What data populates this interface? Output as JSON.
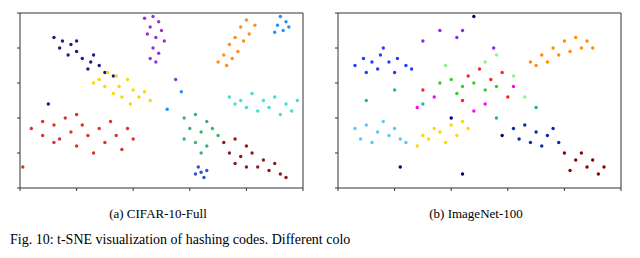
{
  "chart_data": [
    {
      "type": "scatter",
      "title": "(a) CIFAR-10-Full",
      "xlim": [
        0,
        100
      ],
      "ylim": [
        0,
        100
      ],
      "xticks": [
        0,
        20,
        40,
        60,
        80,
        100
      ],
      "yticks": [
        0,
        20,
        40,
        60,
        80,
        100
      ],
      "tick_labels": false,
      "series": [
        {
          "color": "#1c1c7a",
          "x": [
            12,
            15,
            14,
            18,
            20,
            17,
            22,
            25,
            24,
            28,
            30,
            33,
            20,
            26,
            10
          ],
          "y": [
            86,
            84,
            80,
            82,
            78,
            76,
            74,
            72,
            68,
            70,
            66,
            64,
            84,
            76,
            48
          ]
        },
        {
          "color": "#9932cc",
          "x": [
            44,
            47,
            49,
            46,
            50,
            45,
            48,
            51,
            47,
            49,
            46,
            48,
            55
          ],
          "y": [
            97,
            98,
            95,
            92,
            90,
            88,
            86,
            84,
            80,
            77,
            74,
            72,
            62
          ]
        },
        {
          "color": "#ff8c1a",
          "x": [
            80,
            83,
            78,
            81,
            76,
            79,
            74,
            77,
            72,
            75,
            70,
            73
          ],
          "y": [
            96,
            93,
            92,
            88,
            86,
            84,
            82,
            78,
            76,
            74,
            72,
            70
          ]
        },
        {
          "color": "#1e90ff",
          "x": [
            92,
            94,
            91,
            93,
            95,
            90,
            52,
            57
          ],
          "y": [
            98,
            95,
            93,
            90,
            92,
            89,
            45,
            55
          ]
        },
        {
          "color": "#f5d90a",
          "x": [
            28,
            31,
            34,
            30,
            35,
            38,
            40,
            36,
            42,
            44,
            46,
            33,
            39,
            26
          ],
          "y": [
            62,
            66,
            64,
            58,
            58,
            62,
            56,
            52,
            52,
            55,
            50,
            54,
            48,
            60
          ]
        },
        {
          "color": "#d9352b",
          "x": [
            4,
            8,
            8,
            12,
            14,
            16,
            18,
            20,
            22,
            24,
            26,
            28,
            30,
            32,
            34,
            36,
            38,
            40,
            20,
            12,
            1
          ],
          "y": [
            34,
            38,
            30,
            36,
            28,
            40,
            32,
            24,
            36,
            30,
            20,
            34,
            26,
            38,
            30,
            22,
            34,
            28,
            42,
            26,
            12
          ]
        },
        {
          "color": "#40e0d0",
          "x": [
            74,
            78,
            82,
            86,
            90,
            94,
            98,
            80,
            84,
            88,
            92,
            96,
            76
          ],
          "y": [
            52,
            50,
            54,
            50,
            52,
            48,
            50,
            46,
            44,
            46,
            42,
            44,
            48
          ]
        },
        {
          "color": "#3cb371",
          "x": [
            58,
            62,
            66,
            60,
            64,
            68,
            62,
            66,
            58,
            70,
            64
          ],
          "y": [
            40,
            42,
            38,
            34,
            32,
            34,
            26,
            24,
            28,
            30,
            20
          ]
        },
        {
          "color": "#8b1a1a",
          "x": [
            72,
            76,
            80,
            74,
            78,
            82,
            86,
            84,
            88,
            92,
            90,
            80,
            94,
            76
          ],
          "y": [
            26,
            28,
            24,
            20,
            18,
            20,
            16,
            12,
            10,
            8,
            14,
            12,
            6,
            14
          ]
        },
        {
          "color": "#3050d0",
          "x": [
            63,
            64,
            65,
            62,
            66
          ],
          "y": [
            12,
            9,
            6,
            8,
            10
          ]
        }
      ]
    },
    {
      "type": "scatter",
      "title": "(b) ImageNet-100",
      "xlim": [
        0,
        100
      ],
      "ylim": [
        0,
        100
      ],
      "xticks": [
        0,
        20,
        40,
        60,
        80,
        100
      ],
      "yticks": [
        0,
        20,
        40,
        60,
        80,
        100
      ],
      "tick_labels": false,
      "series": [
        {
          "color": "#1f3fff",
          "x": [
            6,
            9,
            12,
            15,
            18,
            21,
            24,
            10,
            14,
            20,
            26,
            16
          ],
          "y": [
            70,
            74,
            72,
            76,
            72,
            74,
            70,
            66,
            68,
            66,
            68,
            80
          ]
        },
        {
          "color": "#ff8c00",
          "x": [
            68,
            72,
            76,
            80,
            84,
            88,
            90,
            74,
            78,
            82,
            86,
            70
          ],
          "y": [
            72,
            76,
            80,
            84,
            86,
            84,
            80,
            72,
            76,
            78,
            80,
            70
          ]
        },
        {
          "color": "#ffd700",
          "x": [
            28,
            32,
            36,
            40,
            44,
            30,
            34,
            38,
            42,
            46
          ],
          "y": [
            24,
            28,
            32,
            36,
            38,
            30,
            34,
            26,
            30,
            34
          ]
        },
        {
          "color": "#5bc8f5",
          "x": [
            6,
            10,
            14,
            18,
            22,
            8,
            12,
            16,
            20,
            24
          ],
          "y": [
            34,
            36,
            32,
            30,
            28,
            28,
            26,
            38,
            34,
            26
          ]
        },
        {
          "color": "#0a2aa0",
          "x": [
            62,
            66,
            70,
            74,
            78,
            64,
            68,
            72,
            76
          ],
          "y": [
            34,
            36,
            32,
            30,
            26,
            28,
            26,
            24,
            34
          ]
        },
        {
          "color": "#8b0000",
          "x": [
            80,
            84,
            88,
            92,
            86,
            90,
            82,
            94
          ],
          "y": [
            20,
            16,
            12,
            8,
            20,
            16,
            10,
            12
          ]
        },
        {
          "color": "#32cd32",
          "x": [
            36,
            40,
            44,
            48,
            52,
            56,
            42
          ],
          "y": [
            60,
            62,
            58,
            60,
            56,
            58,
            54
          ]
        },
        {
          "color": "#ff2020",
          "x": [
            46,
            50,
            54,
            58,
            44,
            60,
            30
          ],
          "y": [
            64,
            68,
            62,
            66,
            50,
            52,
            56
          ]
        },
        {
          "color": "#ff00ff",
          "x": [
            34,
            52,
            62,
            28,
            48
          ],
          "y": [
            52,
            48,
            58,
            46,
            44
          ]
        },
        {
          "color": "#8a2be2",
          "x": [
            42,
            44,
            30,
            55,
            36
          ],
          "y": [
            86,
            90,
            84,
            80,
            90
          ]
        },
        {
          "color": "#90ee90",
          "x": [
            52,
            56,
            62,
            38,
            66
          ],
          "y": [
            72,
            76,
            64,
            70,
            52
          ]
        },
        {
          "color": "#20b2aa",
          "x": [
            10,
            20,
            30,
            56,
            70
          ],
          "y": [
            50,
            56,
            48,
            40,
            46
          ]
        },
        {
          "color": "#000080",
          "x": [
            48,
            40,
            58,
            22,
            44
          ],
          "y": [
            98,
            40,
            30,
            12,
            8
          ]
        }
      ]
    }
  ],
  "caption": "Fig. 10: t-SNE visualization of hashing codes. Different colo"
}
